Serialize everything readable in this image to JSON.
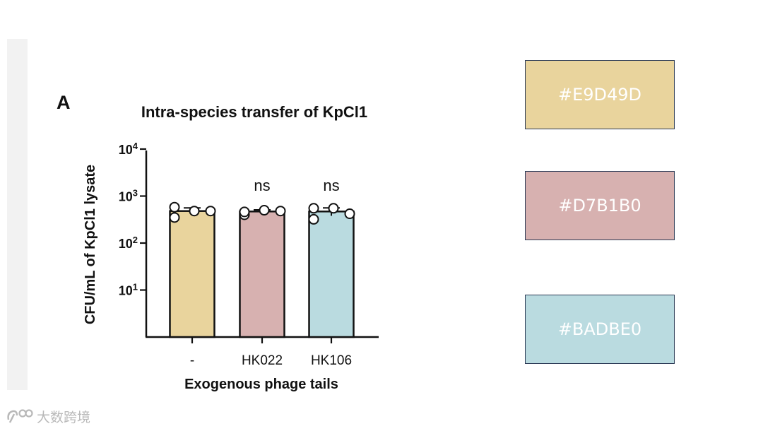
{
  "chart_data": {
    "type": "bar",
    "panel_label": "A",
    "title": "Intra-species transfer of KpCl1",
    "xlabel": "Exogenous phage tails",
    "ylabel": "CFU/mL of KpCl1 lysate",
    "yscale": "log",
    "ylim": [
      1,
      10000
    ],
    "ytick_values": [
      10,
      100,
      1000,
      10000
    ],
    "ytick_labels": [
      {
        "base": "10",
        "exp": "1"
      },
      {
        "base": "10",
        "exp": "2"
      },
      {
        "base": "10",
        "exp": "3"
      },
      {
        "base": "10",
        "exp": "4"
      }
    ],
    "categories": [
      "-",
      "HK022",
      "HK106"
    ],
    "values": [
      480,
      470,
      470
    ],
    "errors": [
      80,
      40,
      90
    ],
    "bar_colors": [
      "#E9D49D",
      "#D7B1B0",
      "#BADBE0"
    ],
    "points": [
      [
        580,
        350,
        480,
        480
      ],
      [
        400,
        460,
        500,
        480
      ],
      [
        550,
        320,
        550,
        420
      ]
    ],
    "significance": [
      "",
      "ns",
      "ns"
    ]
  },
  "swatches": [
    {
      "hex": "#E9D49D",
      "label": "#E9D49D"
    },
    {
      "hex": "#D7B1B0",
      "label": "#D7B1B0"
    },
    {
      "hex": "#BADBE0",
      "label": "#BADBE0"
    }
  ],
  "watermark": {
    "text": "大数跨境",
    "icon": "logo-icon"
  }
}
